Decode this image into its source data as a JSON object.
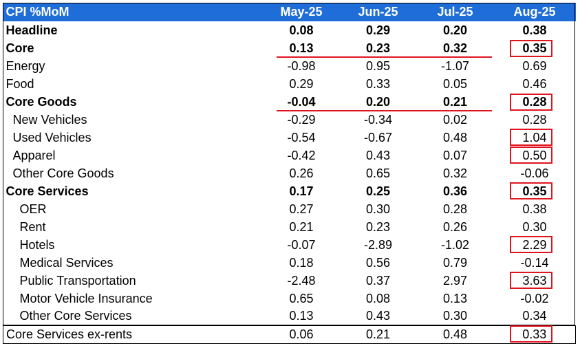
{
  "table": {
    "header_label": "CPI %MoM",
    "columns": [
      "May-25",
      "Jun-25",
      "Jul-25",
      "Aug-25"
    ],
    "rows": [
      {
        "label": "Headline",
        "values": [
          "0.08",
          "0.29",
          "0.20",
          "0.38"
        ]
      },
      {
        "label": "Core",
        "values": [
          "0.13",
          "0.23",
          "0.32",
          "0.35"
        ]
      },
      {
        "label": "Energy",
        "values": [
          "-0.98",
          "0.95",
          "-1.07",
          "0.69"
        ]
      },
      {
        "label": "Food",
        "values": [
          "0.29",
          "0.33",
          "0.05",
          "0.46"
        ]
      },
      {
        "label": "Core Goods",
        "values": [
          "-0.04",
          "0.20",
          "0.21",
          "0.28"
        ]
      },
      {
        "label": "New Vehicles",
        "values": [
          "-0.29",
          "-0.34",
          "0.02",
          "0.28"
        ]
      },
      {
        "label": "Used Vehicles",
        "values": [
          "-0.54",
          "-0.67",
          "0.48",
          "1.04"
        ]
      },
      {
        "label": "Apparel",
        "values": [
          "-0.42",
          "0.43",
          "0.07",
          "0.50"
        ]
      },
      {
        "label": "Other Core Goods",
        "values": [
          "0.26",
          "0.65",
          "0.32",
          "-0.06"
        ]
      },
      {
        "label": "Core Services",
        "values": [
          "0.17",
          "0.25",
          "0.36",
          "0.35"
        ]
      },
      {
        "label": "OER",
        "values": [
          "0.27",
          "0.30",
          "0.28",
          "0.38"
        ]
      },
      {
        "label": "Rent",
        "values": [
          "0.21",
          "0.23",
          "0.26",
          "0.30"
        ]
      },
      {
        "label": "Hotels",
        "values": [
          "-0.07",
          "-2.89",
          "-1.02",
          "2.29"
        ]
      },
      {
        "label": "Medical Services",
        "values": [
          "0.18",
          "0.56",
          "0.79",
          "-0.14"
        ]
      },
      {
        "label": "Public Transportation",
        "values": [
          "-2.48",
          "0.37",
          "2.97",
          "3.63"
        ]
      },
      {
        "label": "Motor Vehicle Insurance",
        "values": [
          "0.65",
          "0.08",
          "0.13",
          "-0.02"
        ]
      },
      {
        "label": "Other Core Services",
        "values": [
          "0.13",
          "0.43",
          "0.30",
          "0.34"
        ]
      },
      {
        "label": "Core Services ex-rents",
        "values": [
          "0.06",
          "0.21",
          "0.48",
          "0.33"
        ]
      }
    ]
  },
  "colors": {
    "header_background": "#1f6dd8",
    "header_text": "#ffffff",
    "highlight": "#e0141e"
  }
}
